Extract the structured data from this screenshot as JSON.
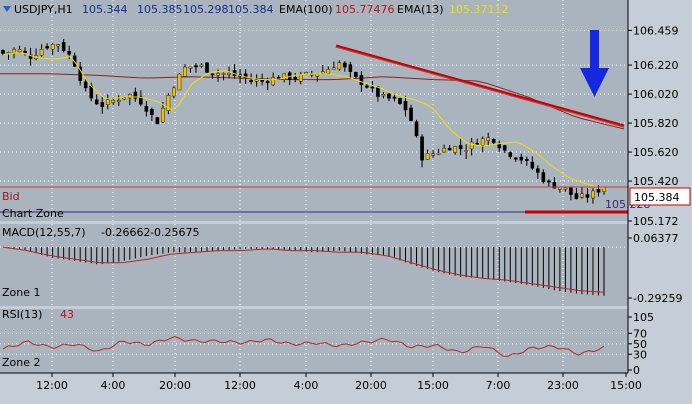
{
  "colors": {
    "frame": "#c5ced6",
    "pane_bg": "#a9b4be",
    "grid": "#ffffff",
    "bull": "#f2c200",
    "bear": "#000000",
    "ema100": "#8a2020",
    "ema13": "#f0e000",
    "trendline": "#c80000",
    "arrow": "#1428e0",
    "bid_line": "#c83c3c",
    "bid_box_border": "#c80000",
    "chart_zone_line": "#32287a",
    "macd_hist": "#000000",
    "macd_signal": "#b42828",
    "rsi_line": "#b42828",
    "scale_text": "#000000"
  },
  "header": {
    "symbol": "USDJPY,H1",
    "open": "105.344",
    "high": "105.385",
    "low": "105.298",
    "close": "105.384",
    "ema100_label": "EMA(100)",
    "ema100_value": "105.77476",
    "ema13_label": "EMA(13)",
    "ema13_value": "105.37112"
  },
  "labels": {
    "bid": "Bid",
    "chart_zone": "Chart Zone",
    "bid_box": "105.384",
    "chart_zone_value": "105.228",
    "zone1": "Zone 1",
    "zone2": "Zone 2"
  },
  "macd_header": {
    "label": "MACD(12,55,7)",
    "value1": "-0.26662",
    "value2": "-0.25675"
  },
  "rsi_header": {
    "label": "RSI(13)",
    "value": "43"
  },
  "chart_data": [
    {
      "type": "candlestick",
      "title": "USDJPY,H1",
      "ylim": [
        105.172,
        106.6
      ],
      "y_ticks": [
        "106.459",
        "106.220",
        "106.020",
        "105.820",
        "105.620",
        "105.420",
        "105.172"
      ],
      "x_ticks": [
        "12:00",
        "4:00",
        "20:00",
        "12:00",
        "4:00",
        "20:00",
        "15:00",
        "7:00",
        "23:00",
        "15:00"
      ],
      "close_path": [
        106.3,
        106.33,
        106.28,
        106.35,
        106.37,
        106.26,
        106.02,
        105.94,
        105.98,
        106.02,
        105.96,
        105.82,
        106.05,
        106.2,
        106.22,
        106.17,
        106.16,
        106.14,
        106.11,
        106.12,
        106.14,
        106.13,
        106.16,
        106.18,
        106.24,
        106.14,
        106.08,
        106.0,
        105.98,
        105.9,
        105.58,
        105.62,
        105.66,
        105.64,
        105.7,
        105.72,
        105.62,
        105.58,
        105.5,
        105.4,
        105.38,
        105.3,
        105.32,
        105.384
      ],
      "bid": 105.384,
      "chart_zone": 105.228,
      "ema100_path": [
        106.16,
        106.16,
        106.15,
        106.13,
        106.14,
        106.13,
        106.12,
        106.12,
        106.14,
        106.12,
        106.11,
        106.0,
        105.86,
        105.78
      ],
      "ema13_path": [
        106.29,
        106.31,
        106.27,
        106.26,
        106.28,
        106.09,
        105.98,
        106.0,
        106.0,
        105.97,
        105.9,
        106.09,
        106.17,
        106.18,
        106.14,
        106.12,
        106.12,
        106.15,
        106.16,
        106.16,
        106.14,
        106.1,
        106.06,
        106.01,
        105.98,
        105.93,
        105.78,
        105.68,
        105.66,
        105.68,
        105.69,
        105.62,
        105.52,
        105.44,
        105.4,
        105.37
      ],
      "trendline": {
        "from": 106.26,
        "to": 105.77
      }
    },
    {
      "type": "bar",
      "title": "MACD(12,55,7)",
      "ylim": [
        -0.29259,
        0.06377
      ],
      "y_ticks": [
        "0.06377",
        "-0.29259"
      ],
      "histogram": [
        0.0,
        -0.02,
        -0.06,
        -0.08,
        -0.1,
        -0.08,
        -0.05,
        -0.03,
        -0.03,
        -0.02,
        -0.01,
        -0.01,
        -0.02,
        -0.03,
        -0.02,
        -0.04,
        -0.05,
        -0.1,
        -0.14,
        -0.17,
        -0.18,
        -0.2,
        -0.22,
        -0.25,
        -0.27,
        -0.28
      ],
      "signal": [
        0.0,
        -0.02,
        -0.05,
        -0.07,
        -0.09,
        -0.09,
        -0.07,
        -0.04,
        -0.03,
        -0.02,
        -0.02,
        -0.01,
        -0.02,
        -0.02,
        -0.03,
        -0.03,
        -0.05,
        -0.09,
        -0.13,
        -0.16,
        -0.18,
        -0.19,
        -0.21,
        -0.23,
        -0.25,
        -0.26
      ]
    },
    {
      "type": "line",
      "title": "RSI(13)",
      "ylim": [
        0,
        105
      ],
      "y_ticks": [
        "105",
        "70",
        "50",
        "30",
        "0"
      ],
      "values": [
        40,
        54,
        43,
        50,
        35,
        55,
        48,
        62,
        55,
        55,
        52,
        58,
        49,
        52,
        46,
        53,
        59,
        44,
        47,
        33,
        47,
        25,
        42,
        45,
        30,
        43
      ]
    }
  ]
}
